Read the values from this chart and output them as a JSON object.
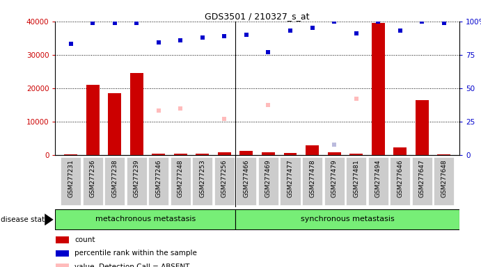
{
  "title": "GDS3501 / 210327_s_at",
  "samples": [
    "GSM277231",
    "GSM277236",
    "GSM277238",
    "GSM277239",
    "GSM277246",
    "GSM277248",
    "GSM277253",
    "GSM277256",
    "GSM277466",
    "GSM277469",
    "GSM277477",
    "GSM277478",
    "GSM277479",
    "GSM277481",
    "GSM277494",
    "GSM277646",
    "GSM277647",
    "GSM277648"
  ],
  "count_values": [
    200,
    21000,
    18500,
    24500,
    400,
    300,
    300,
    700,
    1100,
    700,
    500,
    2800,
    800,
    400,
    39500,
    2200,
    16500,
    200
  ],
  "percentile_values": [
    83,
    99,
    99,
    99,
    84,
    86,
    88,
    89,
    90,
    77,
    93,
    95,
    100,
    91,
    100,
    93,
    100,
    99
  ],
  "absent_value_values": [
    null,
    null,
    null,
    null,
    33,
    35,
    null,
    27,
    null,
    37.5,
    null,
    null,
    null,
    42,
    null,
    null,
    null,
    null
  ],
  "absent_rank_values": [
    null,
    null,
    null,
    null,
    null,
    null,
    null,
    null,
    null,
    null,
    null,
    null,
    7.5,
    null,
    null,
    null,
    null,
    null
  ],
  "group1_count": 8,
  "group1_label": "metachronous metastasis",
  "group2_label": "synchronous metastasis",
  "ylim_left": [
    0,
    40000
  ],
  "ylim_right": [
    0,
    100
  ],
  "yticks_left": [
    0,
    10000,
    20000,
    30000,
    40000
  ],
  "yticks_right": [
    0,
    25,
    50,
    75,
    100
  ],
  "bg_color": "#ffffff",
  "bar_color": "#cc0000",
  "blue_marker_color": "#0000cc",
  "absent_value_color": "#ffbbbb",
  "absent_rank_color": "#bbbbdd",
  "group_color": "#77ee77",
  "grid_color": "#000000",
  "label_area_color": "#cccccc"
}
